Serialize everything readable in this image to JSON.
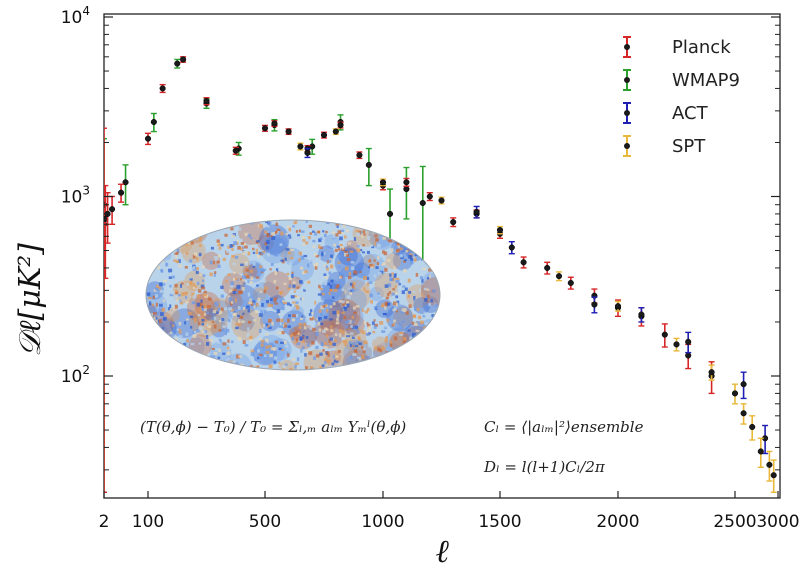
{
  "chart_data": {
    "type": "scatter",
    "title": "",
    "xlabel": "ℓ",
    "ylabel": "𝒟ℓ[μK²]",
    "xscale": "linear-in-segments",
    "yscale": "log",
    "xlim": [
      2,
      3000
    ],
    "ylim": [
      25,
      10000
    ],
    "x_ticks": [
      "2",
      "100",
      "500",
      "1000",
      "1500",
      "2000",
      "2500",
      "3000"
    ],
    "y_ticks": [
      "10^4",
      "10^3",
      "10^2"
    ],
    "legend_position": "top-right",
    "grid": false,
    "series": [
      {
        "name": "Planck",
        "color": "#d62728",
        "points": [
          {
            "x": 2,
            "y": 900,
            "err": 1500
          },
          {
            "x": 5,
            "y": 750,
            "err": 400
          },
          {
            "x": 10,
            "y": 800,
            "err": 250
          },
          {
            "x": 20,
            "y": 850,
            "err": 150
          },
          {
            "x": 40,
            "y": 1050,
            "err": 120
          },
          {
            "x": 100,
            "y": 2100,
            "err": 150
          },
          {
            "x": 150,
            "y": 4000,
            "err": 200
          },
          {
            "x": 220,
            "y": 5800,
            "err": 200
          },
          {
            "x": 300,
            "y": 3400,
            "err": 150
          },
          {
            "x": 400,
            "y": 1800,
            "err": 80
          },
          {
            "x": 500,
            "y": 2400,
            "err": 90
          },
          {
            "x": 540,
            "y": 2550,
            "err": 90
          },
          {
            "x": 600,
            "y": 2300,
            "err": 80
          },
          {
            "x": 680,
            "y": 1850,
            "err": 70
          },
          {
            "x": 750,
            "y": 2200,
            "err": 80
          },
          {
            "x": 820,
            "y": 2500,
            "err": 90
          },
          {
            "x": 900,
            "y": 1700,
            "err": 70
          },
          {
            "x": 1000,
            "y": 1150,
            "err": 60
          },
          {
            "x": 1100,
            "y": 1200,
            "err": 60
          },
          {
            "x": 1200,
            "y": 1000,
            "err": 50
          },
          {
            "x": 1300,
            "y": 720,
            "err": 40
          },
          {
            "x": 1400,
            "y": 800,
            "err": 40
          },
          {
            "x": 1500,
            "y": 620,
            "err": 35
          },
          {
            "x": 1600,
            "y": 430,
            "err": 30
          },
          {
            "x": 1700,
            "y": 400,
            "err": 30
          },
          {
            "x": 1800,
            "y": 330,
            "err": 25
          },
          {
            "x": 1900,
            "y": 280,
            "err": 25
          },
          {
            "x": 2000,
            "y": 240,
            "err": 25
          },
          {
            "x": 2100,
            "y": 215,
            "err": 25
          },
          {
            "x": 2200,
            "y": 170,
            "err": 25
          },
          {
            "x": 2300,
            "y": 130,
            "err": 20
          },
          {
            "x": 2400,
            "y": 100,
            "err": 20
          }
        ]
      },
      {
        "name": "WMAP9",
        "color": "#2ca02c",
        "points": [
          {
            "x": 2,
            "y": 700,
            "err": 1400
          },
          {
            "x": 50,
            "y": 1200,
            "err": 300
          },
          {
            "x": 120,
            "y": 2600,
            "err": 300
          },
          {
            "x": 200,
            "y": 5500,
            "err": 300
          },
          {
            "x": 300,
            "y": 3300,
            "err": 200
          },
          {
            "x": 410,
            "y": 1850,
            "err": 150
          },
          {
            "x": 540,
            "y": 2500,
            "err": 180
          },
          {
            "x": 700,
            "y": 1900,
            "err": 180
          },
          {
            "x": 820,
            "y": 2600,
            "err": 250
          },
          {
            "x": 940,
            "y": 1500,
            "err": 350
          },
          {
            "x": 1030,
            "y": 800,
            "err": 300
          },
          {
            "x": 1100,
            "y": 1100,
            "err": 350
          },
          {
            "x": 1170,
            "y": 920,
            "err": 550
          }
        ]
      },
      {
        "name": "ACT",
        "color": "#1f1fb4",
        "points": [
          {
            "x": 680,
            "y": 1750,
            "err": 100
          },
          {
            "x": 1400,
            "y": 820,
            "err": 60
          },
          {
            "x": 1550,
            "y": 520,
            "err": 40
          },
          {
            "x": 1900,
            "y": 250,
            "err": 25
          },
          {
            "x": 2100,
            "y": 220,
            "err": 20
          },
          {
            "x": 2300,
            "y": 155,
            "err": 20
          },
          {
            "x": 2600,
            "y": 90,
            "err": 15
          },
          {
            "x": 2850,
            "y": 45,
            "err": 8
          }
        ]
      },
      {
        "name": "SPT",
        "color": "#e8b83a",
        "points": [
          {
            "x": 650,
            "y": 1900,
            "err": 80
          },
          {
            "x": 800,
            "y": 2300,
            "err": 80
          },
          {
            "x": 1000,
            "y": 1200,
            "err": 50
          },
          {
            "x": 1250,
            "y": 950,
            "err": 40
          },
          {
            "x": 1500,
            "y": 650,
            "err": 30
          },
          {
            "x": 1750,
            "y": 360,
            "err": 20
          },
          {
            "x": 2000,
            "y": 245,
            "err": 15
          },
          {
            "x": 2250,
            "y": 150,
            "err": 12
          },
          {
            "x": 2400,
            "y": 105,
            "err": 10
          },
          {
            "x": 2500,
            "y": 80,
            "err": 10
          },
          {
            "x": 2600,
            "y": 62,
            "err": 8
          },
          {
            "x": 2700,
            "y": 52,
            "err": 8
          },
          {
            "x": 2800,
            "y": 38,
            "err": 7
          },
          {
            "x": 2900,
            "y": 32,
            "err": 6
          },
          {
            "x": 2950,
            "y": 28,
            "err": 6
          }
        ]
      }
    ]
  },
  "annotations": {
    "eq1": "(T(θ,ϕ) − T₀) / T₀ = Σₗ,ₘ aₗₘ Yₘˡ(θ,ϕ)",
    "eq2": "Cₗ = ⟨|aₗₘ|²⟩ensemble",
    "eq3": "Dₗ = l(l+1)Cₗ/2π"
  },
  "inset": {
    "name": "cmb-sky-map",
    "colors": [
      "#2f5fd0",
      "#6e9ae6",
      "#b9d3ea",
      "#e8d7b4",
      "#e39a55",
      "#c8683a"
    ]
  }
}
